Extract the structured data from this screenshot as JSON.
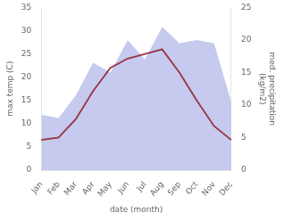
{
  "chart_data": {
    "type": "line",
    "categories": [
      "Jan",
      "Feb",
      "Mar",
      "Apr",
      "May",
      "Jun",
      "Jul",
      "Aug",
      "Sep",
      "Oct",
      "Nov",
      "Dec"
    ],
    "series": [
      {
        "type": "area",
        "color": "#c5caee",
        "axis": "y2",
        "values": [
          8.5,
          8.0,
          11.5,
          16.5,
          15.0,
          20.0,
          17.0,
          22.0,
          19.5,
          20.0,
          19.5,
          10.5
        ]
      },
      {
        "type": "line",
        "color": "#993344",
        "values": [
          6.5,
          7.0,
          11.0,
          17.0,
          22.0,
          24.0,
          25.0,
          26.0,
          21.0,
          15.0,
          9.5,
          6.5
        ]
      }
    ],
    "xlabel": "date (month)",
    "ylabel": "max temp (C)",
    "y2label": "med. precipitation\n(kg/m2)",
    "ylim": [
      0,
      35
    ],
    "yticks": [
      0,
      5,
      10,
      15,
      20,
      25,
      30,
      35
    ],
    "y2lim": [
      0,
      25
    ],
    "y2ticks": [
      0,
      5,
      10,
      15,
      20,
      25
    ],
    "grid": false
  }
}
